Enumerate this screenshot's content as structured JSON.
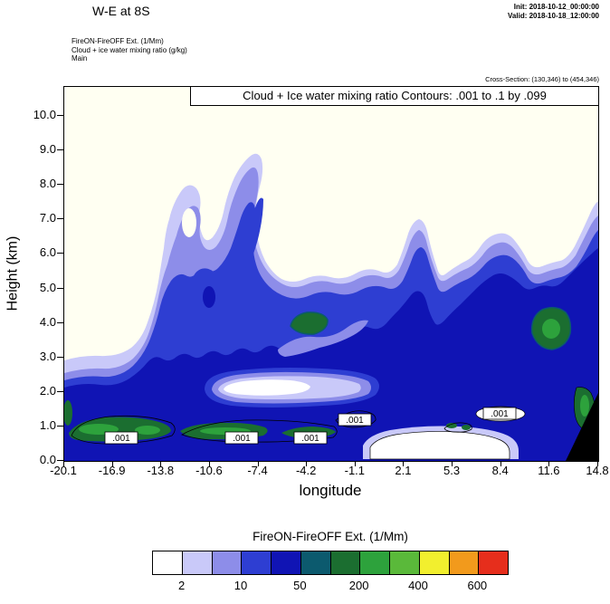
{
  "header": {
    "title": "W-E at 8S",
    "init": "Init: 2018-10-12_00:00:00",
    "valid": "Valid: 2018-10-18_12:00:00",
    "field_lines": [
      "FireON-FireOFF Ext.  (1/Mm)",
      "Cloud + ice water mixing ratio  (g/kg)",
      "Main"
    ],
    "cross_section": "Cross-Section: (130,346) to (454,346)"
  },
  "plot": {
    "inner_title": "Cloud + Ice water mixing ratio Contours: .001 to .1 by .099",
    "xlabel": "longitude",
    "ylabel": "Height (km)",
    "x_tick_labels": [
      "-20.1",
      "-16.9",
      "-13.8",
      "-10.6",
      "-7.4",
      "-4.2",
      "-1.1",
      "2.1",
      "5.3",
      "8.4",
      "11.6",
      "14.8"
    ],
    "y_tick_labels": [
      "10.0",
      "9.0",
      "8.0",
      "7.0",
      "6.0",
      "5.0",
      "4.0",
      "3.0",
      "2.0",
      "1.0",
      "0.0"
    ],
    "contour_label": ".001"
  },
  "colorbar": {
    "title": "FireON-FireOFF Ext.  (1/Mm)",
    "colors": [
      "#ffffff",
      "#c9c9f9",
      "#8d8de9",
      "#2e3ed2",
      "#1014b4",
      "#0c5a6e",
      "#1b6e30",
      "#2da23c",
      "#5ab93a",
      "#f2ef2e",
      "#f29a1c",
      "#e62e1c"
    ],
    "tick_labels": [
      "2",
      "10",
      "50",
      "200",
      "400",
      "600"
    ],
    "tick_boundaries": [
      1,
      3,
      5,
      7,
      9,
      11
    ]
  },
  "plot_colors": {
    "background": "#fffff2",
    "white": "#ffffff",
    "lavender": "#c9c9f9",
    "periwinkle": "#8d8de9",
    "blue": "#2e3ed2",
    "dark_blue": "#1014b4",
    "teal": "#0c5a6e",
    "dark_green": "#1b6e30",
    "green": "#2da23c",
    "terrain": "#000000",
    "contour_line": "#000000"
  },
  "chart_data": {
    "type": "heatmap",
    "subtype": "filled-contour vertical cross-section (W-E at 8S)",
    "title": "Cloud + Ice water mixing ratio Contours: .001 to .1 by .099",
    "xlabel": "longitude",
    "ylabel": "Height (km)",
    "x_ticks": [
      -20.1,
      -16.9,
      -13.8,
      -10.6,
      -7.4,
      -4.2,
      -1.1,
      2.1,
      5.3,
      8.4,
      11.6,
      14.8
    ],
    "xlim": [
      -20.1,
      14.8
    ],
    "y_ticks": [
      0.0,
      1.0,
      2.0,
      3.0,
      4.0,
      5.0,
      6.0,
      7.0,
      8.0,
      9.0,
      10.0
    ],
    "ylim": [
      0.0,
      10.8
    ],
    "grid": false,
    "legend_position": "bottom colorbar",
    "fill_variable": "FireON-FireOFF Ext. (1/Mm)",
    "fill_levels_labeled": [
      2,
      10,
      50,
      200,
      400,
      600
    ],
    "fill_colors": [
      "#ffffff",
      "#c9c9f9",
      "#8d8de9",
      "#2e3ed2",
      "#1014b4",
      "#0c5a6e",
      "#1b6e30",
      "#2da23c",
      "#5ab93a",
      "#f2ef2e",
      "#f29a1c",
      "#e62e1c"
    ],
    "line_contours": {
      "variable": "Cloud + Ice water mixing ratio (g/kg)",
      "levels": [
        0.001,
        0.1
      ],
      "label": ".001",
      "label_locations_lon_km": [
        [
          -16.2,
          0.7
        ],
        [
          -8.5,
          0.7
        ],
        [
          -3.9,
          0.7
        ],
        [
          -1.2,
          1.2
        ],
        [
          8.4,
          1.4
        ]
      ]
    },
    "features": [
      {
        "region": "surface layer 0-2 km across most of section",
        "value": "50-200 (dark blue) with green maxima 200-400 near 1 km between lon -20 and -10"
      },
      {
        "region": "tilted plume from lon -14 rising to ~8.7 km near lon -7.4",
        "value": "2-10 (lavender/periwinkle with blue core)"
      },
      {
        "region": "right half lon 0 to 14.8 up to ~6.5 km",
        "value": "10-50 (blue/dark blue), tops 2-5 (lavender) to ~7.5 km at right edge"
      },
      {
        "region": "white hole lon -11 to -4 near 1.5-2.2 km",
        "value": "< 2"
      },
      {
        "region": "white area lon -0.5 to 9 below ~1 km",
        "value": "< 2"
      },
      {
        "region": "green maxima near lon -4.3 at 3.5 km and lon 11-13 at 3.5-4 km",
        "value": "200-400"
      },
      {
        "region": "black terrain wedge bottom-right corner near lon 14.8",
        "value": "masked"
      }
    ]
  }
}
